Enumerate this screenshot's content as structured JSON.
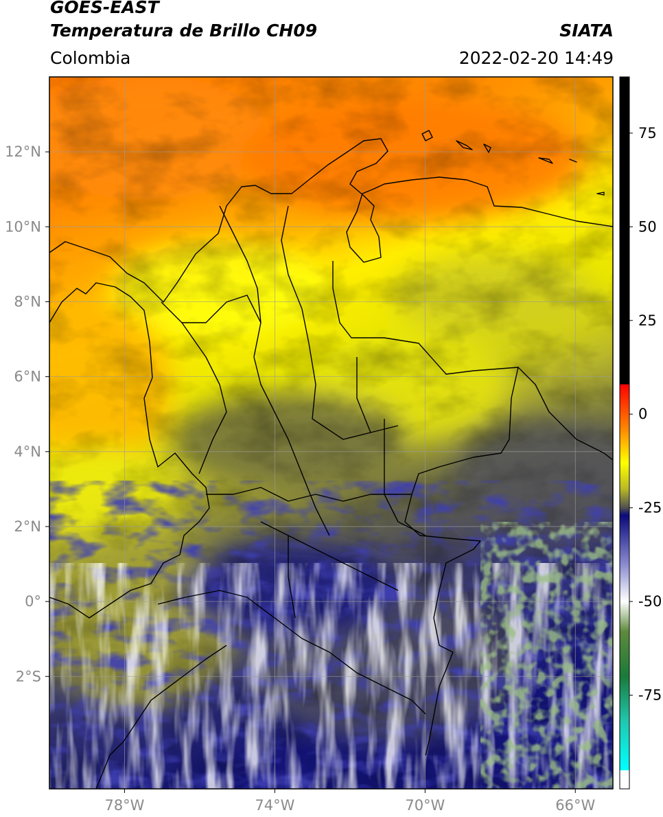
{
  "header": {
    "satellite": "GOES-EAST",
    "product": "Temperatura de Brillo CH09",
    "brand": "SIATA",
    "region": "Colombia",
    "datetime": "2022-02-20 14:49"
  },
  "map": {
    "lon_range": [
      -80,
      -65
    ],
    "lat_range": [
      -5,
      14
    ],
    "lat_ticks": [
      {
        "value": 12,
        "label": "12°N"
      },
      {
        "value": 10,
        "label": "10°N"
      },
      {
        "value": 8,
        "label": "8°N"
      },
      {
        "value": 6,
        "label": "6°N"
      },
      {
        "value": 4,
        "label": "4°N"
      },
      {
        "value": 2,
        "label": "2°N"
      },
      {
        "value": 0,
        "label": "0°"
      },
      {
        "value": -2,
        "label": "2°S"
      }
    ],
    "lon_ticks": [
      {
        "value": -78,
        "label": "78°W"
      },
      {
        "value": -74,
        "label": "74°W"
      },
      {
        "value": -70,
        "label": "70°W"
      },
      {
        "value": -66,
        "label": "66°W"
      }
    ],
    "grid": true
  },
  "colorbar": {
    "range": [
      -100,
      90
    ],
    "ticks": [
      {
        "value": 75,
        "label": "75"
      },
      {
        "value": 50,
        "label": "50"
      },
      {
        "value": 25,
        "label": "25"
      },
      {
        "value": 0,
        "label": "0"
      },
      {
        "value": -25,
        "label": "-25"
      },
      {
        "value": -50,
        "label": "-50"
      },
      {
        "value": -75,
        "label": "-75"
      }
    ],
    "stops": [
      {
        "value": 90,
        "color": "#000000"
      },
      {
        "value": 8,
        "color": "#000000"
      },
      {
        "value": 7.9,
        "color": "#ff0000"
      },
      {
        "value": -4,
        "color": "#ff8800"
      },
      {
        "value": -13,
        "color": "#ffff00"
      },
      {
        "value": -20,
        "color": "#b8b826"
      },
      {
        "value": -25,
        "color": "#505050"
      },
      {
        "value": -27,
        "color": "#0a0a7a"
      },
      {
        "value": -40,
        "color": "#8a8ad0"
      },
      {
        "value": -50,
        "color": "#ffffff"
      },
      {
        "value": -58,
        "color": "#5e8a3c"
      },
      {
        "value": -70,
        "color": "#1a7a3a"
      },
      {
        "value": -82,
        "color": "#20c8b0"
      },
      {
        "value": -95,
        "color": "#00ffff"
      },
      {
        "value": -95.1,
        "color": "#ffffff"
      },
      {
        "value": -100,
        "color": "#ffffff"
      }
    ]
  }
}
